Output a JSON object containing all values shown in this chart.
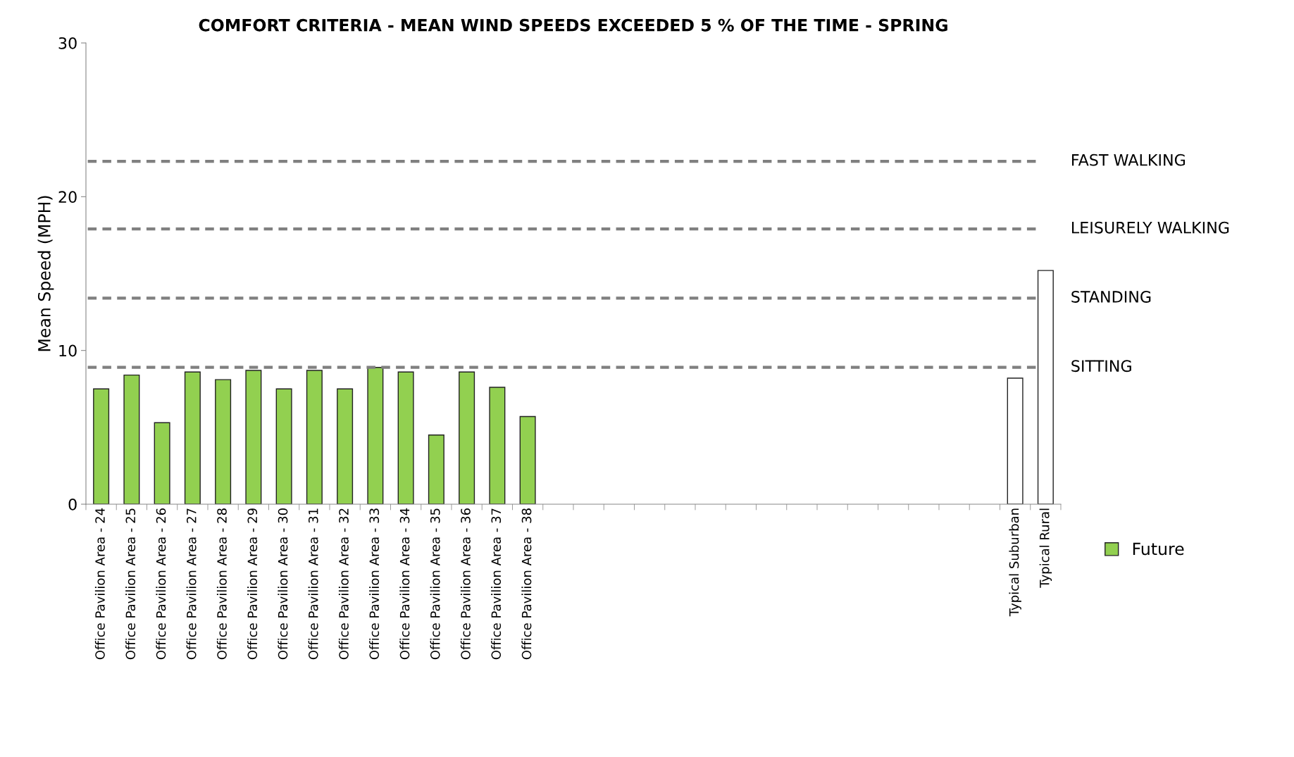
{
  "chart_data": {
    "type": "bar",
    "title": "COMFORT CRITERIA - MEAN WIND SPEEDS EXCEEDED 5 % OF THE TIME - SPRING",
    "ylabel": "Mean Speed (MPH)",
    "categories": [
      "Office Pavilion Area - 24",
      "Office Pavilion Area - 25",
      "Office Pavilion Area - 26",
      "Office Pavilion Area - 27",
      "Office Pavilion Area - 28",
      "Office Pavilion Area - 29",
      "Office Pavilion Area - 30",
      "Office Pavilion Area - 31",
      "Office Pavilion Area - 32",
      "Office Pavilion Area - 33",
      "Office Pavilion Area - 34",
      "Office Pavilion Area - 35",
      "Office Pavilion Area - 36",
      "Office Pavilion Area - 37",
      "Office Pavilion Area - 38",
      null,
      null,
      null,
      null,
      null,
      null,
      null,
      null,
      null,
      null,
      null,
      null,
      null,
      null,
      null,
      "Typical Suburban",
      "Typical Rural"
    ],
    "series": [
      {
        "name": "Future",
        "color": "#92d050",
        "values": [
          7.5,
          8.4,
          5.3,
          8.6,
          8.1,
          8.7,
          7.5,
          8.7,
          7.5,
          8.9,
          8.6,
          4.5,
          8.6,
          7.6,
          5.7,
          null,
          null,
          null,
          null,
          null,
          null,
          null,
          null,
          null,
          null,
          null,
          null,
          null,
          null,
          null,
          null,
          null
        ]
      },
      {
        "color": "#ffffff",
        "values": [
          null,
          null,
          null,
          null,
          null,
          null,
          null,
          null,
          null,
          null,
          null,
          null,
          null,
          null,
          null,
          null,
          null,
          null,
          null,
          null,
          null,
          null,
          null,
          null,
          null,
          null,
          null,
          null,
          null,
          null,
          8.2,
          15.2
        ]
      }
    ],
    "ylim": [
      0,
      30
    ],
    "yticks": [
      0,
      10,
      20,
      30
    ],
    "grid": false,
    "legend": "right",
    "ref_lines": [
      {
        "axis": "y",
        "value": 22.3,
        "label": "FAST WALKING",
        "color": "#808080",
        "line_style": "dashed"
      },
      {
        "axis": "y",
        "value": 17.9,
        "label": "LEISURELY WALKING",
        "color": "#808080",
        "line_style": "dashed"
      },
      {
        "axis": "y",
        "value": 13.4,
        "label": "STANDING",
        "color": "#808080",
        "line_style": "dashed"
      },
      {
        "axis": "y",
        "value": 8.9,
        "label": "SITTING",
        "color": "#808080",
        "line_style": "dashed"
      }
    ]
  }
}
